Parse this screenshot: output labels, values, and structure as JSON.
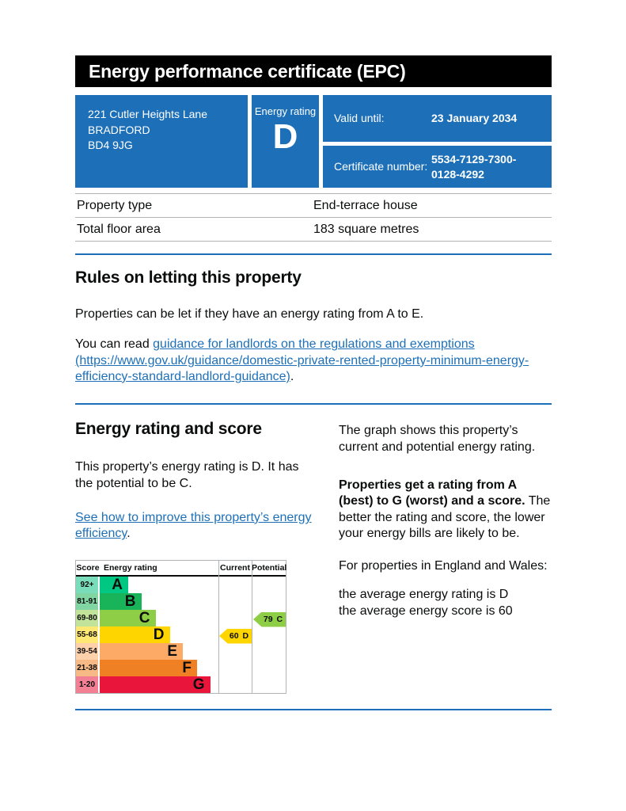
{
  "page": {
    "title": "Energy performance certificate (EPC)"
  },
  "colors": {
    "govuk_blue": "#1d70b8",
    "title_bar_bg": "#000000",
    "text": "#0b0c0c",
    "border_gray": "#b1b4b6"
  },
  "summary": {
    "address_line_1": "221 Cutler Heights Lane",
    "address_line_2": "BRADFORD",
    "address_line_3": "BD4 9JG",
    "energy_rating_label": "Energy rating",
    "energy_rating_value": "D",
    "valid_until_label": "Valid until:",
    "valid_until_value": "23 January 2034",
    "certificate_number_label": "Certificate number:",
    "certificate_number_value": "5534-7129-7300-0128-4292"
  },
  "property_details": {
    "rows": [
      {
        "label": "Property type",
        "value": "End-terrace house"
      },
      {
        "label": "Total floor area",
        "value": "183 square metres"
      }
    ]
  },
  "letting_rules": {
    "heading": "Rules on letting this property",
    "intro": "Properties can be let if they have an energy rating from A to E.",
    "read_prefix": "You can read ",
    "link_text": "guidance for landlords on the regulations and exemptions (https://www.gov.uk/guidance/domestic-private-rented-property-minimum-energy-efficiency-standard-landlord-guidance)",
    "read_suffix": "."
  },
  "rating_section": {
    "heading": "Energy rating and score",
    "summary": "This property’s energy rating is D. It has the potential to be C.",
    "improve_link_text": "See how to improve this property’s energy efficiency",
    "improve_suffix": ".",
    "right": {
      "p1": "The graph shows this property’s current and potential energy rating.",
      "p2_bold": "Properties get a rating from A (best) to G (worst) and a score.",
      "p2_rest": " The better the rating and score, the lower your energy bills are likely to be.",
      "p3": "For properties in England and Wales:",
      "p4_line1": "the average energy rating is D",
      "p4_line2": "the average energy score is 60"
    }
  },
  "chart_data": {
    "type": "bar",
    "title": "Energy rating and score",
    "headers": {
      "score": "Score",
      "rating": "Energy rating",
      "current": "Current",
      "potential": "Potential"
    },
    "bands": [
      {
        "letter": "A",
        "score_range": "92+",
        "color": "#00c781",
        "score_bg": "#79ddbb",
        "width_pct": 24
      },
      {
        "letter": "B",
        "score_range": "81-91",
        "color": "#19b459",
        "score_bg": "#80d5a3",
        "width_pct": 35
      },
      {
        "letter": "C",
        "score_range": "69-80",
        "color": "#8dce46",
        "score_bg": "#c1e49a",
        "width_pct": 47
      },
      {
        "letter": "D",
        "score_range": "55-68",
        "color": "#ffd500",
        "score_bg": "#ffe873",
        "width_pct": 59
      },
      {
        "letter": "E",
        "score_range": "39-54",
        "color": "#fcaa65",
        "score_bg": "#fed1ab",
        "width_pct": 70
      },
      {
        "letter": "F",
        "score_range": "21-38",
        "color": "#ef8023",
        "score_bg": "#f7b986",
        "width_pct": 82
      },
      {
        "letter": "G",
        "score_range": "1-20",
        "color": "#e9153b",
        "score_bg": "#f37f94",
        "width_pct": 93
      }
    ],
    "current": {
      "score": "60",
      "band": "D",
      "row_index": 3,
      "color": "#ffd500"
    },
    "potential": {
      "score": "79",
      "band": "C",
      "row_index": 2,
      "color": "#8dce46"
    }
  }
}
